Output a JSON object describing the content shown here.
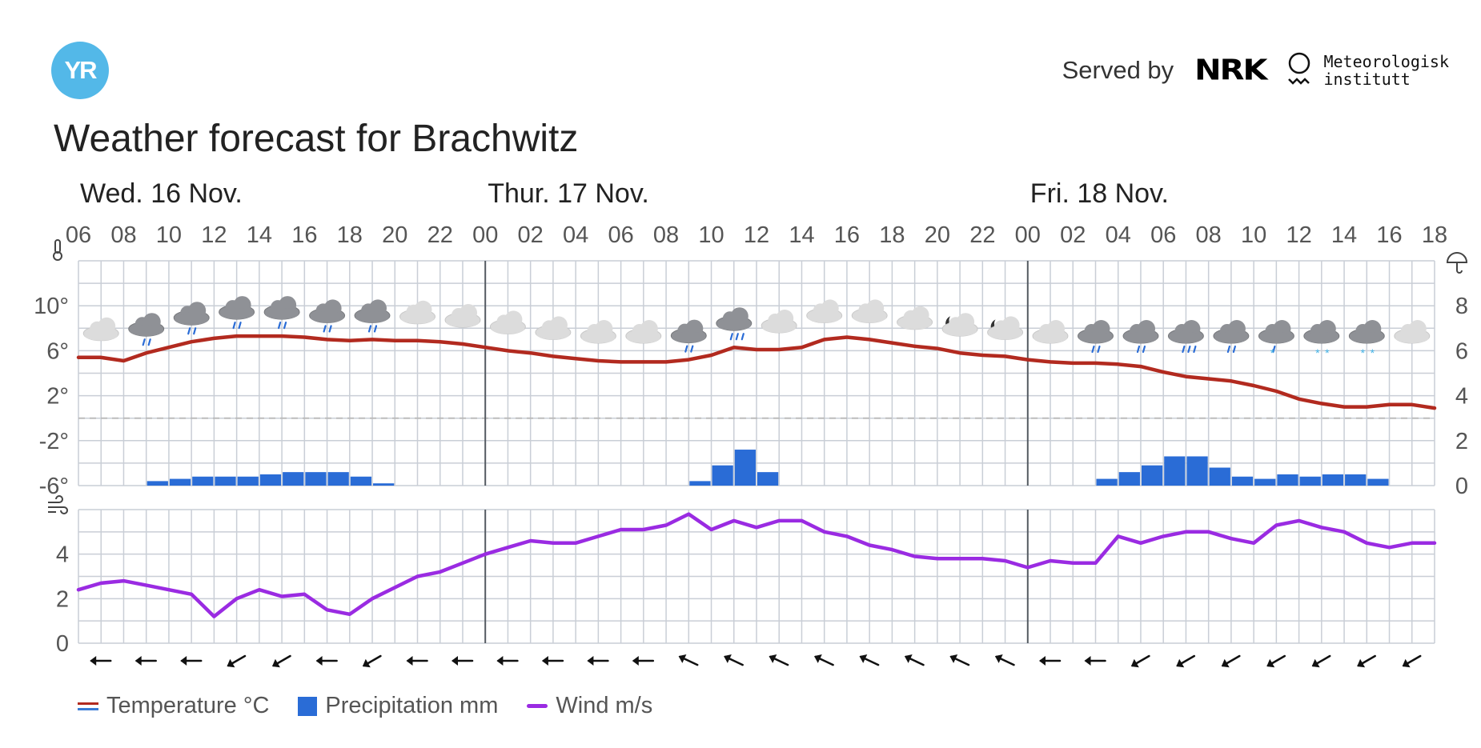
{
  "header": {
    "logo_text": "YR",
    "served_by": "Served by",
    "nrk_logo_text": "NRK",
    "met_logo_text": [
      "Meteorologisk",
      "institutt"
    ],
    "title": "Weather forecast for Brachwitz"
  },
  "legend": [
    {
      "label": "Temperature °C",
      "kind": "temp"
    },
    {
      "label": "Precipitation mm",
      "kind": "precip"
    },
    {
      "label": "Wind m/s",
      "kind": "wind"
    }
  ],
  "colors": {
    "temperature": "#b22a1f",
    "temperature_cold": "#3a7bd5",
    "precipitation": "#2a6cd6",
    "wind": "#9a2be2",
    "grid": "#c9ced6",
    "day_line": "#555b62",
    "logo": "#53b8e8"
  },
  "chart_data": {
    "type": "line",
    "days": [
      {
        "label": "Wed. 16 Nov.",
        "hour": 6
      },
      {
        "label": "Thur. 17 Nov.",
        "hour": 24
      },
      {
        "label": "Fri. 18 Nov.",
        "hour": 48
      }
    ],
    "hour_range": [
      6,
      66
    ],
    "hour_ticks": [
      "06",
      "08",
      "10",
      "12",
      "14",
      "16",
      "18",
      "20",
      "22",
      "00",
      "02",
      "04",
      "06",
      "08",
      "10",
      "12",
      "14",
      "16",
      "18",
      "20",
      "22",
      "00",
      "02",
      "04",
      "06",
      "08",
      "10",
      "12",
      "14",
      "16",
      "18"
    ],
    "temperature_axis": {
      "ticks": [
        "10°",
        "6°",
        "2°",
        "-2°",
        "-6°"
      ],
      "min": -6,
      "max": 14,
      "icon": "thermometer-icon"
    },
    "precipitation_axis": {
      "ticks": [
        "8",
        "6",
        "4",
        "2",
        "0"
      ],
      "min": 0,
      "max": 10,
      "icon": "umbrella-icon"
    },
    "wind_axis": {
      "ticks": [
        "4",
        "2",
        "0"
      ],
      "min": 0,
      "max": 6,
      "icon": "wind-icon"
    },
    "temperature": [
      [
        6,
        5.4
      ],
      [
        7,
        5.4
      ],
      [
        8,
        5.1
      ],
      [
        9,
        5.8
      ],
      [
        10,
        6.3
      ],
      [
        11,
        6.8
      ],
      [
        12,
        7.1
      ],
      [
        13,
        7.3
      ],
      [
        14,
        7.3
      ],
      [
        15,
        7.3
      ],
      [
        16,
        7.2
      ],
      [
        17,
        7.0
      ],
      [
        18,
        6.9
      ],
      [
        19,
        7.0
      ],
      [
        20,
        6.9
      ],
      [
        21,
        6.9
      ],
      [
        22,
        6.8
      ],
      [
        23,
        6.6
      ],
      [
        24,
        6.3
      ],
      [
        25,
        6.0
      ],
      [
        26,
        5.8
      ],
      [
        27,
        5.5
      ],
      [
        28,
        5.3
      ],
      [
        29,
        5.1
      ],
      [
        30,
        5.0
      ],
      [
        31,
        5.0
      ],
      [
        32,
        5.0
      ],
      [
        33,
        5.2
      ],
      [
        34,
        5.6
      ],
      [
        35,
        6.3
      ],
      [
        36,
        6.1
      ],
      [
        37,
        6.1
      ],
      [
        38,
        6.3
      ],
      [
        39,
        7.0
      ],
      [
        40,
        7.2
      ],
      [
        41,
        7.0
      ],
      [
        42,
        6.7
      ],
      [
        43,
        6.4
      ],
      [
        44,
        6.2
      ],
      [
        45,
        5.8
      ],
      [
        46,
        5.6
      ],
      [
        47,
        5.5
      ],
      [
        48,
        5.2
      ],
      [
        49,
        5.0
      ],
      [
        50,
        4.9
      ],
      [
        51,
        4.9
      ],
      [
        52,
        4.8
      ],
      [
        53,
        4.6
      ],
      [
        54,
        4.1
      ],
      [
        55,
        3.7
      ],
      [
        56,
        3.5
      ],
      [
        57,
        3.3
      ],
      [
        58,
        2.9
      ],
      [
        59,
        2.4
      ],
      [
        60,
        1.7
      ],
      [
        61,
        1.3
      ],
      [
        62,
        1.0
      ],
      [
        63,
        1.0
      ],
      [
        64,
        1.2
      ],
      [
        65,
        1.2
      ],
      [
        66,
        0.9
      ]
    ],
    "wind": [
      [
        6,
        2.4
      ],
      [
        7,
        2.7
      ],
      [
        8,
        2.8
      ],
      [
        9,
        2.6
      ],
      [
        10,
        2.4
      ],
      [
        11,
        2.2
      ],
      [
        12,
        1.2
      ],
      [
        13,
        2.0
      ],
      [
        14,
        2.4
      ],
      [
        15,
        2.1
      ],
      [
        16,
        2.2
      ],
      [
        17,
        1.5
      ],
      [
        18,
        1.3
      ],
      [
        19,
        2.0
      ],
      [
        20,
        2.5
      ],
      [
        21,
        3.0
      ],
      [
        22,
        3.2
      ],
      [
        23,
        3.6
      ],
      [
        24,
        4.0
      ],
      [
        25,
        4.3
      ],
      [
        26,
        4.6
      ],
      [
        27,
        4.5
      ],
      [
        28,
        4.5
      ],
      [
        29,
        4.8
      ],
      [
        30,
        5.1
      ],
      [
        31,
        5.1
      ],
      [
        32,
        5.3
      ],
      [
        33,
        5.8
      ],
      [
        34,
        5.1
      ],
      [
        35,
        5.5
      ],
      [
        36,
        5.2
      ],
      [
        37,
        5.5
      ],
      [
        38,
        5.5
      ],
      [
        39,
        5.0
      ],
      [
        40,
        4.8
      ],
      [
        41,
        4.4
      ],
      [
        42,
        4.2
      ],
      [
        43,
        3.9
      ],
      [
        44,
        3.8
      ],
      [
        45,
        3.8
      ],
      [
        46,
        3.8
      ],
      [
        47,
        3.7
      ],
      [
        48,
        3.4
      ],
      [
        49,
        3.7
      ],
      [
        50,
        3.6
      ],
      [
        51,
        3.6
      ],
      [
        52,
        4.8
      ],
      [
        53,
        4.5
      ],
      [
        54,
        4.8
      ],
      [
        55,
        5.0
      ],
      [
        56,
        5.0
      ],
      [
        57,
        4.7
      ],
      [
        58,
        4.5
      ],
      [
        59,
        5.3
      ],
      [
        60,
        5.5
      ],
      [
        61,
        5.2
      ],
      [
        62,
        5.0
      ],
      [
        63,
        4.5
      ],
      [
        64,
        4.3
      ],
      [
        65,
        4.5
      ],
      [
        66,
        4.5
      ]
    ],
    "precipitation": [
      [
        9,
        0.2
      ],
      [
        10,
        0.3
      ],
      [
        11,
        0.4
      ],
      [
        12,
        0.4
      ],
      [
        13,
        0.4
      ],
      [
        14,
        0.5
      ],
      [
        15,
        0.6
      ],
      [
        16,
        0.6
      ],
      [
        17,
        0.6
      ],
      [
        18,
        0.4
      ],
      [
        19,
        0.1
      ],
      [
        33,
        0.2
      ],
      [
        34,
        0.9
      ],
      [
        35,
        1.6
      ],
      [
        36,
        0.6
      ],
      [
        51,
        0.3
      ],
      [
        52,
        0.6
      ],
      [
        53,
        0.9
      ],
      [
        54,
        1.3
      ],
      [
        55,
        1.3
      ],
      [
        56,
        0.8
      ],
      [
        57,
        0.4
      ],
      [
        58,
        0.3
      ],
      [
        59,
        0.5
      ],
      [
        60,
        0.4
      ],
      [
        61,
        0.5
      ],
      [
        62,
        0.5
      ],
      [
        63,
        0.3
      ]
    ],
    "wind_directions": [
      "arrow-w",
      "arrow-w",
      "arrow-w",
      "arrow-sw",
      "arrow-sw",
      "arrow-w",
      "arrow-sw",
      "arrow-w",
      "arrow-w",
      "arrow-w",
      "arrow-w",
      "arrow-w",
      "arrow-w",
      "arrow-nw",
      "arrow-nw",
      "arrow-nw",
      "arrow-nw",
      "arrow-nw",
      "arrow-nw",
      "arrow-nw",
      "arrow-nw",
      "arrow-w",
      "arrow-w",
      "arrow-sw",
      "arrow-sw",
      "arrow-sw",
      "arrow-sw",
      "arrow-sw",
      "arrow-sw",
      "arrow-sw"
    ],
    "weather_symbols": [
      "cloudy",
      "light-rain",
      "light-rain",
      "light-rain",
      "light-rain",
      "light-rain",
      "light-rain",
      "cloudy",
      "cloudy",
      "cloudy",
      "cloudy",
      "cloudy",
      "cloudy",
      "light-rain",
      "rain",
      "cloudy",
      "cloudy",
      "cloudy",
      "cloudy",
      "partly-cloudy-night",
      "partly-cloudy-night",
      "cloudy",
      "light-rain",
      "light-rain",
      "rain",
      "light-rain",
      "sleet",
      "snow",
      "snow",
      "cloudy"
    ],
    "grid": true
  }
}
